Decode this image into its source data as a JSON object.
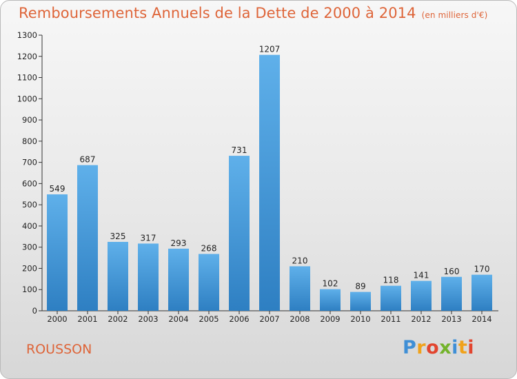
{
  "title": "Remboursements Annuels de la Dette de 2000 à 2014",
  "title_unit": "(en milliers d'€)",
  "commune": "ROUSSON",
  "logo": {
    "letters": [
      "P",
      "r",
      "o",
      "x",
      "i",
      "t",
      "i"
    ],
    "colors": [
      "#3f8fd6",
      "#f0a21b",
      "#e2452f",
      "#73b32b",
      "#3f8fd6",
      "#f0a21b",
      "#e2452f"
    ]
  },
  "colors": {
    "bar_light": "#5fb0ea",
    "bar_dark": "#2e7fc2",
    "title": "#de6438"
  },
  "chart_data": {
    "type": "bar",
    "categories": [
      "2000",
      "2001",
      "2002",
      "2003",
      "2004",
      "2005",
      "2006",
      "2007",
      "2008",
      "2009",
      "2010",
      "2011",
      "2012",
      "2013",
      "2014"
    ],
    "values": [
      549,
      687,
      325,
      317,
      293,
      268,
      731,
      1207,
      210,
      102,
      89,
      118,
      141,
      160,
      170
    ],
    "ylim": [
      0,
      1300
    ],
    "yticks": [
      0,
      100,
      200,
      300,
      400,
      500,
      600,
      700,
      800,
      900,
      1000,
      1100,
      1200,
      1300
    ],
    "grid": false
  }
}
